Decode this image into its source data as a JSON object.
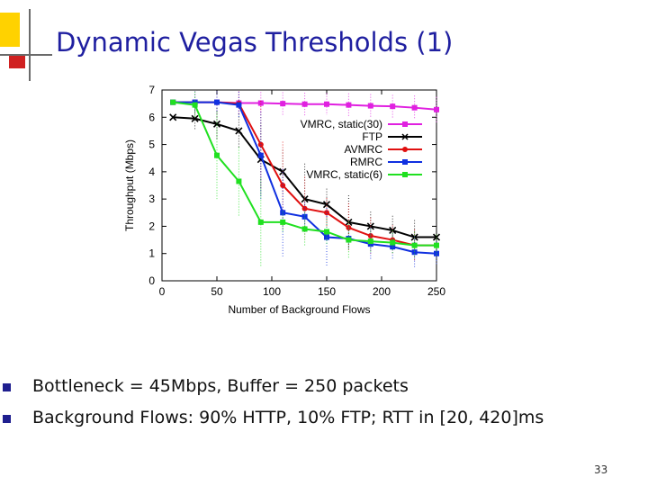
{
  "slide": {
    "title": "Dynamic Vegas Thresholds (1)",
    "bullets": [
      "Bottleneck = 45Mbps, Buffer = 250 packets",
      "Background Flows: 90% HTTP, 10% FTP; RTT in [20, 420]ms"
    ],
    "page_number": "33",
    "colors": {
      "title": "#1f1fa0",
      "accent_yellow": "#ffd200",
      "accent_red": "#d02020",
      "bullet": "#1f1f8f"
    }
  },
  "chart_data": {
    "type": "line",
    "title": "",
    "xlabel": "Number of Background Flows",
    "ylabel": "Throughput (Mbps)",
    "xlim": [
      0,
      250
    ],
    "ylim": [
      0,
      7
    ],
    "xticks": [
      0,
      50,
      100,
      150,
      200,
      250
    ],
    "yticks": [
      0,
      1,
      2,
      3,
      4,
      5,
      6,
      7
    ],
    "grid": false,
    "legend_position": "top-right",
    "series": [
      {
        "name": "VMRC, static(30)",
        "color": "#e020e0",
        "marker": "square",
        "x": [
          10,
          30,
          50,
          70,
          90,
          110,
          130,
          150,
          170,
          190,
          210,
          230,
          250
        ],
        "y": [
          6.55,
          6.55,
          6.55,
          6.52,
          6.52,
          6.5,
          6.48,
          6.48,
          6.45,
          6.42,
          6.4,
          6.35,
          6.28
        ]
      },
      {
        "name": "FTP",
        "color": "#000000",
        "marker": "x",
        "x": [
          10,
          30,
          50,
          70,
          90,
          110,
          130,
          150,
          170,
          190,
          210,
          230,
          250
        ],
        "y": [
          6.0,
          5.95,
          5.75,
          5.5,
          4.45,
          4.0,
          3.0,
          2.8,
          2.15,
          2.0,
          1.85,
          1.6,
          1.6
        ]
      },
      {
        "name": "AVMRC",
        "color": "#e01010",
        "marker": "circle",
        "x": [
          10,
          30,
          50,
          70,
          90,
          110,
          130,
          150,
          170,
          190,
          210,
          230,
          250
        ],
        "y": [
          6.55,
          6.55,
          6.55,
          6.5,
          5.0,
          3.5,
          2.65,
          2.5,
          1.95,
          1.65,
          1.5,
          1.3,
          1.3
        ]
      },
      {
        "name": "RMRC",
        "color": "#1030e0",
        "marker": "square",
        "x": [
          10,
          30,
          50,
          70,
          90,
          110,
          130,
          150,
          170,
          190,
          210,
          230,
          250
        ],
        "y": [
          6.55,
          6.55,
          6.55,
          6.45,
          4.6,
          2.5,
          2.35,
          1.6,
          1.55,
          1.35,
          1.25,
          1.05,
          1.0
        ]
      },
      {
        "name": "VMRC, static(6)",
        "color": "#20e020",
        "marker": "square",
        "x": [
          10,
          30,
          50,
          70,
          90,
          110,
          130,
          150,
          170,
          190,
          210,
          230,
          250
        ],
        "y": [
          6.55,
          6.45,
          4.6,
          3.65,
          2.15,
          2.15,
          1.9,
          1.8,
          1.5,
          1.45,
          1.4,
          1.3,
          1.3
        ]
      }
    ]
  }
}
